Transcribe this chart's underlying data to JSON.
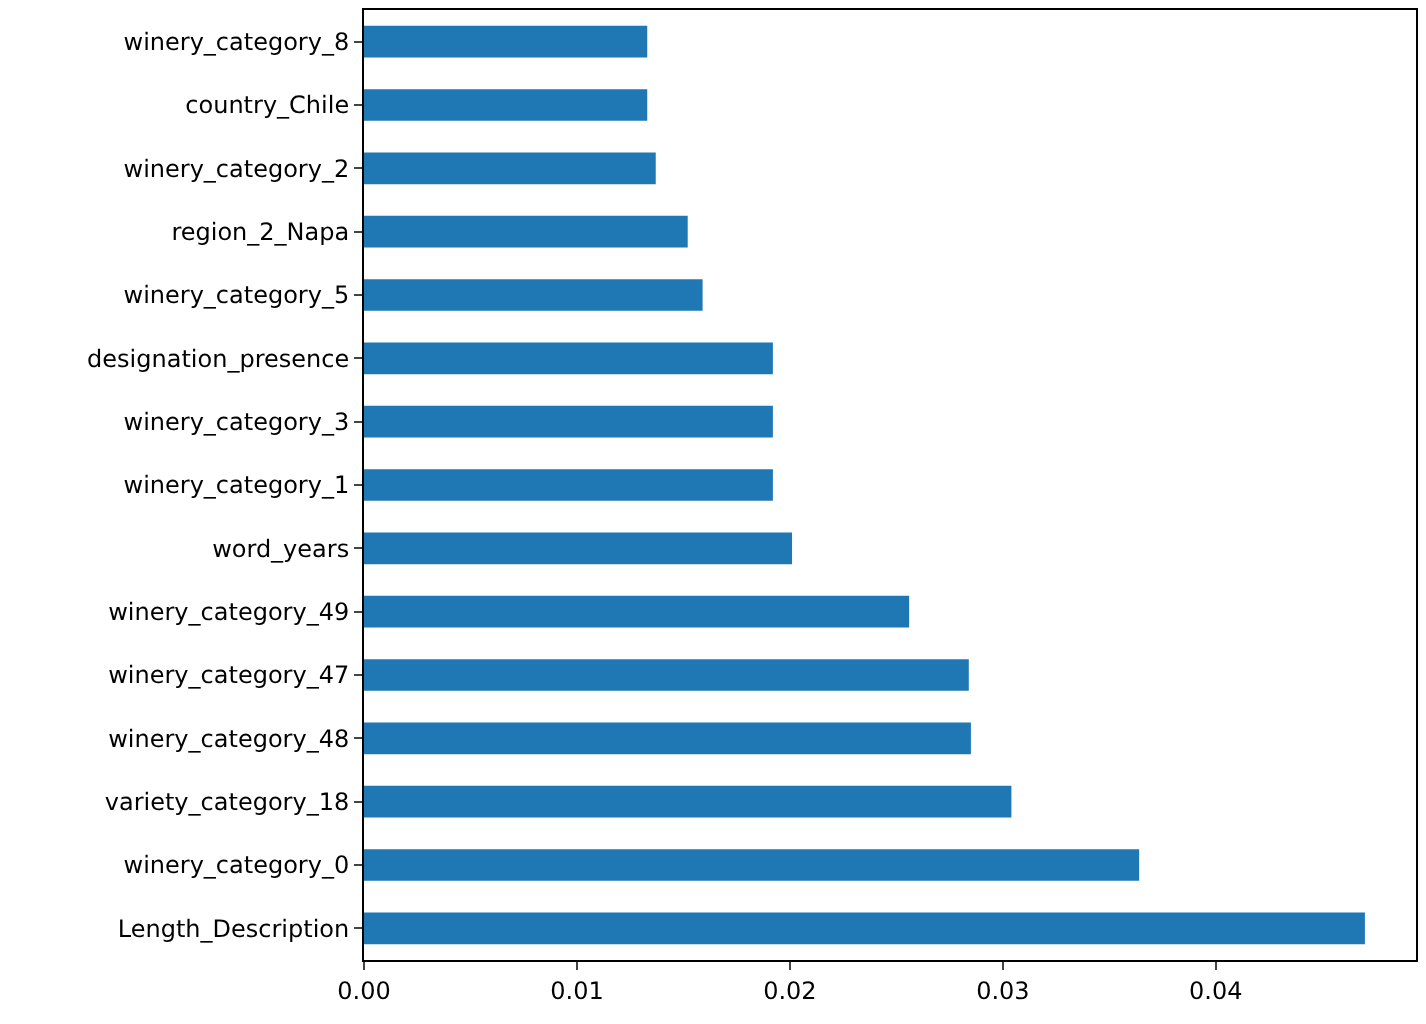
{
  "chart_data": {
    "type": "bar",
    "orientation": "horizontal",
    "categories": [
      "winery_category_8",
      "country_Chile",
      "winery_category_2",
      "region_2_Napa",
      "winery_category_5",
      "designation_presence",
      "winery_category_3",
      "winery_category_1",
      "word_years",
      "winery_category_49",
      "winery_category_47",
      "winery_category_48",
      "variety_category_18",
      "winery_category_0",
      "Length_Description"
    ],
    "values": [
      0.0133,
      0.0133,
      0.0137,
      0.0152,
      0.0159,
      0.0192,
      0.0192,
      0.0192,
      0.0201,
      0.0256,
      0.0284,
      0.0285,
      0.0304,
      0.0364,
      0.047
    ],
    "color": "#1f77b4",
    "xlim": [
      0,
      0.0494
    ],
    "xticks": [
      {
        "value": 0,
        "label": "0.00"
      },
      0.01,
      0.02,
      0.03,
      0.04
    ],
    "grid": false,
    "legend": false
  }
}
